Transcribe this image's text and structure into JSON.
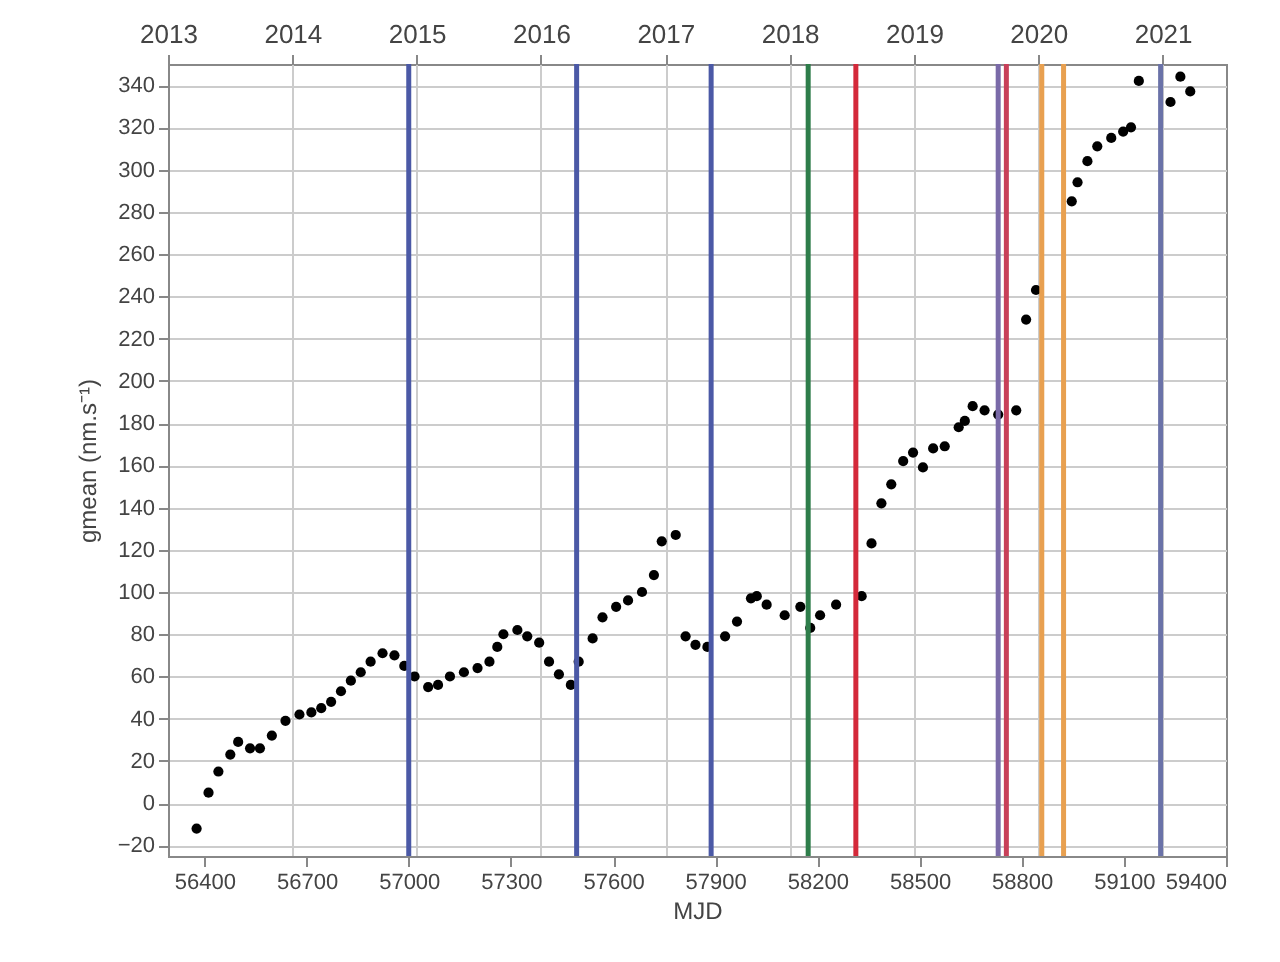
{
  "chart_data": {
    "type": "scatter",
    "xlabel": "MJD",
    "ylabel": "gmean (nm.s⁻¹)",
    "marker": "circle",
    "grid": true,
    "xlim": [
      56293,
      59400
    ],
    "xticks": [
      56400,
      56700,
      57000,
      57300,
      57600,
      57900,
      58200,
      58500,
      58800,
      59100,
      59400
    ],
    "x2lim": [
      2013,
      2021.51
    ],
    "x2ticks": [
      2013,
      2014,
      2015,
      2016,
      2017,
      2018,
      2019,
      2020,
      2021
    ],
    "ylim": [
      -25,
      350
    ],
    "yticks": [
      -20,
      0,
      20,
      40,
      60,
      80,
      100,
      120,
      140,
      160,
      180,
      200,
      220,
      240,
      260,
      280,
      300,
      320,
      340
    ],
    "x": [
      56377,
      56412,
      56441,
      56476,
      56499,
      56534,
      56563,
      56598,
      56638,
      56679,
      56714,
      56743,
      56772,
      56801,
      56830,
      56859,
      56888,
      56923,
      56958,
      56987,
      57017,
      57057,
      57086,
      57121,
      57162,
      57202,
      57237,
      57260,
      57278,
      57319,
      57348,
      57383,
      57412,
      57441,
      57476,
      57499,
      57540,
      57569,
      57609,
      57644,
      57685,
      57720,
      57743,
      57784,
      57813,
      57842,
      57877,
      57929,
      57964,
      58005,
      58022,
      58051,
      58104,
      58150,
      58179,
      58208,
      58255,
      58330,
      58359,
      58388,
      58417,
      58452,
      58481,
      58510,
      58540,
      58574,
      58615,
      58633,
      58656,
      58691,
      58731,
      58784,
      58813,
      58842,
      58947,
      58964,
      58993,
      59022,
      59063,
      59098,
      59121,
      59144,
      59237,
      59266,
      59295
    ],
    "series": [
      {
        "color": "#000000",
        "values": [
          -12,
          5,
          15,
          23,
          29,
          26,
          26,
          32,
          39,
          42,
          43,
          45,
          48,
          53,
          58,
          62,
          67,
          71,
          70,
          65,
          60,
          55,
          56,
          60,
          62,
          64,
          67,
          74,
          80,
          82,
          79,
          76,
          67,
          61,
          56,
          67,
          78,
          88,
          93,
          96,
          100,
          108,
          124,
          127,
          79,
          75,
          74,
          79,
          86,
          97,
          98,
          94,
          89,
          93,
          83,
          89,
          94,
          98,
          123,
          142,
          151,
          162,
          166,
          159,
          168,
          169,
          178,
          181,
          188,
          186,
          184,
          186,
          229,
          243,
          285,
          294,
          304,
          311,
          315,
          318,
          320,
          342,
          332,
          344,
          337
        ]
      }
    ],
    "ref_lines": [
      {
        "axis": "x",
        "value": 57000,
        "color": "#4b59a6"
      },
      {
        "axis": "x",
        "value": 57493,
        "color": "#4b59a6"
      },
      {
        "axis": "x",
        "value": 57888,
        "color": "#4b59a6"
      },
      {
        "axis": "x",
        "value": 58173,
        "color": "#2e7d4a"
      },
      {
        "axis": "x",
        "value": 58313,
        "color": "#d4293a"
      },
      {
        "axis": "x",
        "value": 58731,
        "color": "#7a6aa8"
      },
      {
        "axis": "x",
        "value": 58755,
        "color": "#c8405a"
      },
      {
        "axis": "x",
        "value": 58859,
        "color": "#e8a050"
      },
      {
        "axis": "x",
        "value": 58923,
        "color": "#e8a050"
      },
      {
        "axis": "x",
        "value": 59208,
        "color": "#6a72a8"
      }
    ]
  }
}
